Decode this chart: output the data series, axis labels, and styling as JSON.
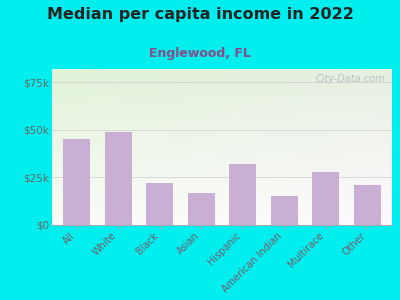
{
  "title": "Median per capita income in 2022",
  "subtitle": "Englewood, FL",
  "categories": [
    "All",
    "White",
    "Black",
    "Asian",
    "Hispanic",
    "American Indian",
    "Multirace",
    "Other"
  ],
  "values": [
    45000,
    49000,
    22000,
    17000,
    32000,
    15000,
    28000,
    21000
  ],
  "bar_color": "#c9afd4",
  "background_outer": "#00EEEE",
  "title_color": "#222222",
  "subtitle_color": "#8b4a8a",
  "axis_label_color": "#7a5a6a",
  "tick_color": "#666666",
  "watermark": "City-Data.com",
  "yticks": [
    0,
    25000,
    50000,
    75000
  ],
  "ytick_labels": [
    "$0",
    "$25k",
    "$50k",
    "$75k"
  ],
  "ylim": [
    0,
    82000
  ]
}
